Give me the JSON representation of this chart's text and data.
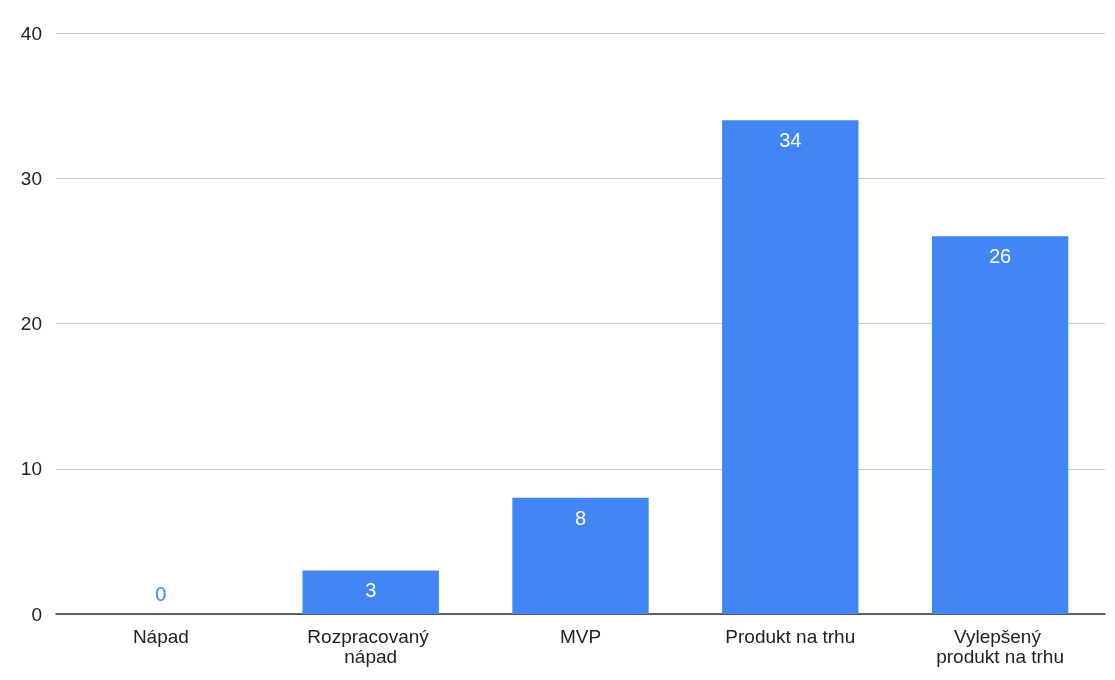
{
  "chart_data": {
    "type": "bar",
    "categories": [
      "Nápad",
      "Rozpracovaný nápad",
      "MVP",
      "Produkt na trhu",
      "Vylepšený produkt na trhu"
    ],
    "values": [
      0,
      3,
      8,
      34,
      26
    ],
    "color": "#4285f4",
    "ylim": [
      0,
      40
    ],
    "yticks": [
      0,
      10,
      20,
      30,
      40
    ],
    "grid": "y",
    "data_labels": true
  }
}
